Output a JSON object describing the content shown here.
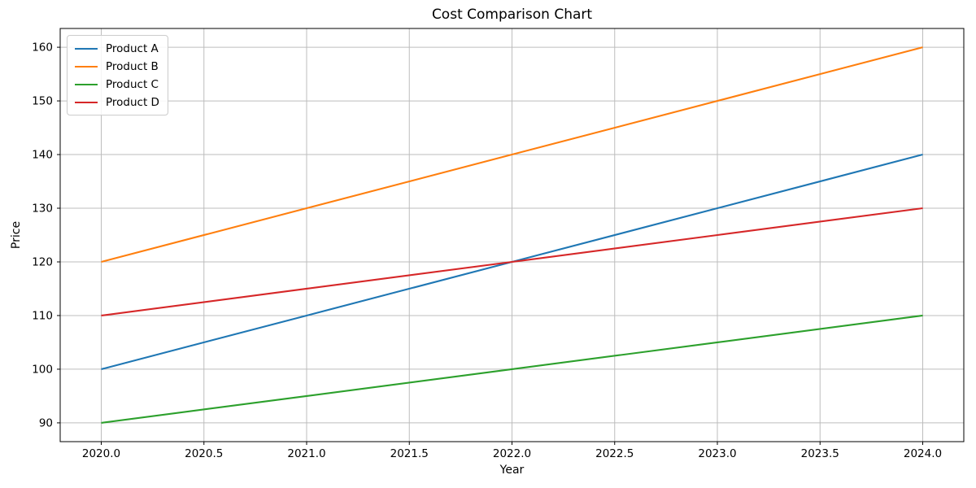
{
  "figure": {
    "kind": "matplotlib-line-chart"
  },
  "chart_data": {
    "type": "line",
    "title": "Cost Comparison Chart",
    "xlabel": "Year",
    "ylabel": "Price",
    "x": [
      2020,
      2021,
      2022,
      2023,
      2024
    ],
    "series": [
      {
        "name": "Product A",
        "color": "#1f77b4",
        "values": [
          100,
          110,
          120,
          130,
          140
        ]
      },
      {
        "name": "Product B",
        "color": "#ff7f0e",
        "values": [
          120,
          130,
          140,
          150,
          160
        ]
      },
      {
        "name": "Product C",
        "color": "#2ca02c",
        "values": [
          90,
          95,
          100,
          105,
          110
        ]
      },
      {
        "name": "Product D",
        "color": "#d62728",
        "values": [
          110,
          115,
          120,
          125,
          130
        ]
      }
    ],
    "xlim": [
      2019.8,
      2024.2
    ],
    "ylim": [
      86.5,
      163.5
    ],
    "x_ticks": {
      "values": [
        2020,
        2020.5,
        2021,
        2021.5,
        2022,
        2022.5,
        2023,
        2023.5,
        2024
      ],
      "labels": [
        "2020.0",
        "2020.5",
        "2021.0",
        "2021.5",
        "2022.0",
        "2022.5",
        "2023.0",
        "2023.5",
        "2024.0"
      ]
    },
    "y_ticks": {
      "values": [
        90,
        100,
        110,
        120,
        130,
        140,
        150,
        160
      ],
      "labels": [
        "90",
        "100",
        "110",
        "120",
        "130",
        "140",
        "150",
        "160"
      ]
    },
    "grid": true,
    "legend": {
      "position": "upper-left",
      "entries": [
        "Product A",
        "Product B",
        "Product C",
        "Product D"
      ]
    },
    "styles": {
      "background": "#ffffff",
      "grid_color": "#bdbdbd",
      "spine_color": "#000000",
      "tick_color": "#000000",
      "line_width": 2.1
    }
  }
}
